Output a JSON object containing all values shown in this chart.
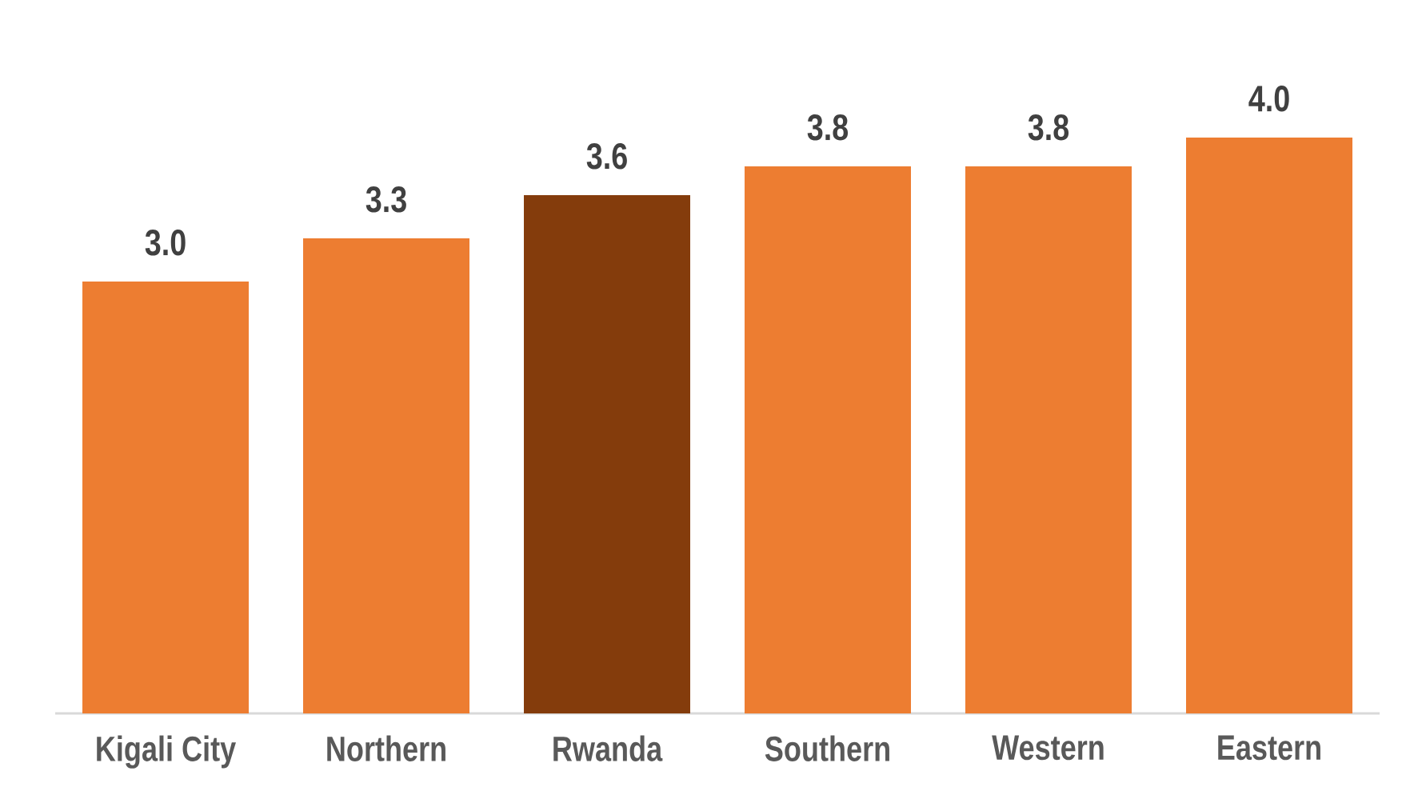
{
  "chart_data": {
    "type": "bar",
    "categories": [
      "Kigali City",
      "Northern",
      "Rwanda",
      "Southern",
      "Western",
      "Eastern"
    ],
    "values": [
      3.0,
      3.3,
      3.6,
      3.8,
      3.8,
      4.0
    ],
    "colors": [
      "#ed7d31",
      "#ed7d31",
      "#843c0c",
      "#ed7d31",
      "#ed7d31",
      "#ed7d31"
    ],
    "value_labels": [
      "3.0",
      "3.3",
      "3.6",
      "3.8",
      "3.8",
      "4.0"
    ]
  }
}
